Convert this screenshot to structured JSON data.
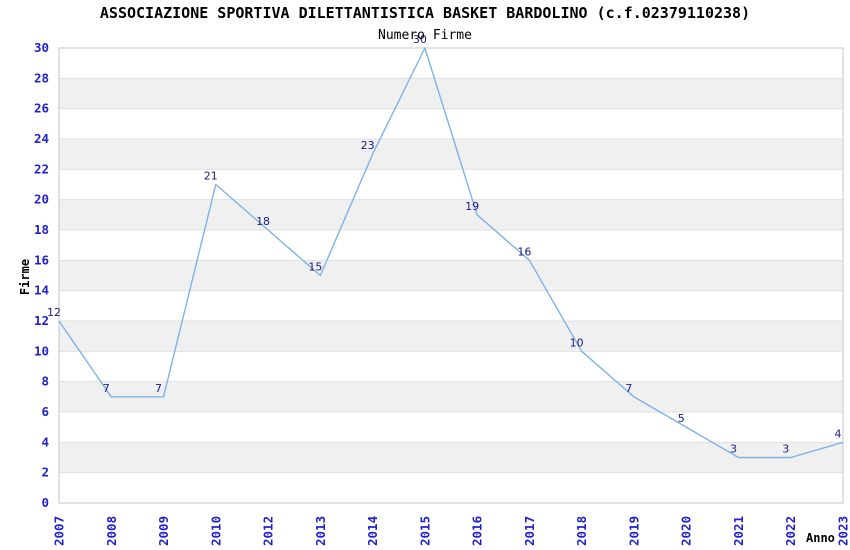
{
  "chart_data": {
    "type": "line",
    "title": "ASSOCIAZIONE SPORTIVA DILETTANTISTICA BASKET BARDOLINO (c.f.02379110238)",
    "subtitle": "Numero Firme",
    "xlabel": "Anno",
    "ylabel": "Firme",
    "categories": [
      "2007",
      "2008",
      "2009",
      "2010",
      "2012",
      "2013",
      "2014",
      "2015",
      "2016",
      "2017",
      "2018",
      "2019",
      "2020",
      "2021",
      "2022",
      "2023"
    ],
    "values": [
      12,
      7,
      7,
      21,
      18,
      15,
      23,
      30,
      19,
      16,
      10,
      7,
      5,
      3,
      3,
      4
    ],
    "yticks": [
      0,
      2,
      4,
      6,
      8,
      10,
      12,
      14,
      16,
      18,
      20,
      22,
      24,
      26,
      28,
      30
    ],
    "ylim": [
      0,
      30
    ],
    "grid": "horizontal-bands-alternating",
    "legend_position": "none",
    "point_labels_shown": true,
    "colors": {
      "line": "#7fb2e5",
      "point_label": "#1b1b85",
      "tick_label": "#2222cc",
      "band_gray": "#f0f0f0",
      "gridline": "#e0e0e0",
      "plot_border": "#c6c6c6",
      "title_text": "#000000",
      "background": "#ffffff"
    }
  }
}
